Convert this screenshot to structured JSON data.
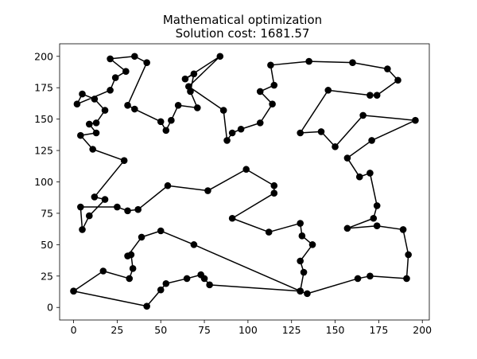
{
  "chart_data": {
    "type": "line",
    "title": "Mathematical optimization",
    "subtitle": "Solution cost: 1681.57",
    "xlim": [
      -8,
      204
    ],
    "ylim": [
      -10,
      210
    ],
    "xticks": [
      0,
      25,
      50,
      75,
      100,
      125,
      150,
      175,
      200
    ],
    "yticks": [
      0,
      25,
      50,
      75,
      100,
      125,
      150,
      175,
      200
    ],
    "grid": false,
    "marker": "circle",
    "line_color": "#000000",
    "points": [
      [
        0,
        13
      ],
      [
        17,
        29
      ],
      [
        32,
        23
      ],
      [
        34,
        31
      ],
      [
        33,
        42
      ],
      [
        31,
        41
      ],
      [
        39,
        56
      ],
      [
        50,
        61
      ],
      [
        69,
        50
      ],
      [
        130,
        13
      ],
      [
        132,
        28
      ],
      [
        130,
        37
      ],
      [
        137,
        50
      ],
      [
        131,
        57
      ],
      [
        130,
        67
      ],
      [
        112,
        60
      ],
      [
        91,
        71
      ],
      [
        115,
        91
      ],
      [
        115,
        97
      ],
      [
        99,
        110
      ],
      [
        77,
        93
      ],
      [
        54,
        97
      ],
      [
        37,
        78
      ],
      [
        31,
        77
      ],
      [
        25,
        80
      ],
      [
        4,
        80
      ],
      [
        5,
        62
      ],
      [
        9,
        73
      ],
      [
        18,
        86
      ],
      [
        12,
        88
      ],
      [
        29,
        117
      ],
      [
        11,
        126
      ],
      [
        4,
        137
      ],
      [
        13,
        139
      ],
      [
        9,
        146
      ],
      [
        13,
        147
      ],
      [
        18,
        157
      ],
      [
        12,
        166
      ],
      [
        5,
        170
      ],
      [
        2,
        162
      ],
      [
        21,
        173
      ],
      [
        24,
        183
      ],
      [
        30,
        188
      ],
      [
        21,
        198
      ],
      [
        35,
        200
      ],
      [
        42,
        195
      ],
      [
        31,
        161
      ],
      [
        35,
        158
      ],
      [
        50,
        148
      ],
      [
        53,
        141
      ],
      [
        56,
        149
      ],
      [
        60,
        161
      ],
      [
        71,
        159
      ],
      [
        67,
        172
      ],
      [
        69,
        186
      ],
      [
        64,
        182
      ],
      [
        84,
        200
      ],
      [
        66,
        176
      ],
      [
        86,
        157
      ],
      [
        88,
        133
      ],
      [
        91,
        139
      ],
      [
        96,
        142
      ],
      [
        107,
        147
      ],
      [
        114,
        162
      ],
      [
        107,
        172
      ],
      [
        115,
        177
      ],
      [
        113,
        193
      ],
      [
        135,
        196
      ],
      [
        160,
        195
      ],
      [
        180,
        190
      ],
      [
        186,
        181
      ],
      [
        174,
        169
      ],
      [
        170,
        169
      ],
      [
        146,
        173
      ],
      [
        130,
        139
      ],
      [
        142,
        140
      ],
      [
        150,
        128
      ],
      [
        166,
        153
      ],
      [
        196,
        149
      ],
      [
        171,
        133
      ],
      [
        157,
        119
      ],
      [
        164,
        104
      ],
      [
        170,
        107
      ],
      [
        174,
        81
      ],
      [
        172,
        71
      ],
      [
        157,
        63
      ],
      [
        174,
        65
      ],
      [
        189,
        62
      ],
      [
        192,
        42
      ],
      [
        191,
        23
      ],
      [
        170,
        25
      ],
      [
        163,
        23
      ],
      [
        134,
        11
      ],
      [
        130,
        13
      ],
      [
        78,
        18
      ],
      [
        75,
        23
      ],
      [
        73,
        26
      ],
      [
        65,
        23
      ],
      [
        53,
        19
      ],
      [
        50,
        14
      ],
      [
        42,
        1
      ],
      [
        0,
        13
      ]
    ]
  }
}
